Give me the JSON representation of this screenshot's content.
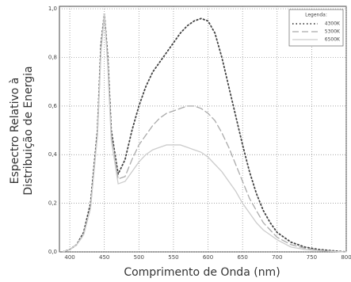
{
  "chart_data": {
    "type": "line",
    "xlabel": "Comprimento de Onda (nm)",
    "ylabel": [
      "Espectro Relativo à",
      "Distribuição de Energia"
    ],
    "legend_title": "Legenda:",
    "legend": "upper right",
    "grid": true,
    "x": [
      390,
      400,
      410,
      420,
      430,
      440,
      445,
      450,
      455,
      460,
      470,
      480,
      490,
      500,
      510,
      520,
      530,
      540,
      550,
      560,
      570,
      580,
      590,
      600,
      610,
      620,
      630,
      640,
      650,
      660,
      670,
      680,
      690,
      700,
      720,
      740,
      760,
      780,
      800
    ],
    "series": [
      {
        "name": "4300K",
        "color": "#444444",
        "style": "dotted",
        "values": [
          0,
          0.01,
          0.03,
          0.08,
          0.2,
          0.5,
          0.85,
          0.98,
          0.8,
          0.5,
          0.32,
          0.38,
          0.5,
          0.6,
          0.68,
          0.74,
          0.78,
          0.82,
          0.86,
          0.9,
          0.93,
          0.95,
          0.96,
          0.95,
          0.9,
          0.8,
          0.68,
          0.56,
          0.44,
          0.33,
          0.24,
          0.17,
          0.12,
          0.08,
          0.04,
          0.02,
          0.01,
          0.005,
          0
        ]
      },
      {
        "name": "5300K",
        "color": "#aaaaaa",
        "style": "dashed",
        "values": [
          0,
          0.01,
          0.03,
          0.07,
          0.18,
          0.48,
          0.82,
          0.98,
          0.78,
          0.48,
          0.3,
          0.31,
          0.38,
          0.44,
          0.48,
          0.52,
          0.55,
          0.57,
          0.58,
          0.59,
          0.6,
          0.6,
          0.59,
          0.57,
          0.54,
          0.49,
          0.43,
          0.36,
          0.29,
          0.22,
          0.17,
          0.12,
          0.09,
          0.06,
          0.03,
          0.015,
          0.007,
          0.003,
          0
        ]
      },
      {
        "name": "6500K",
        "color": "#cccccc",
        "style": "solid",
        "values": [
          0,
          0.01,
          0.03,
          0.07,
          0.18,
          0.48,
          0.82,
          0.98,
          0.76,
          0.46,
          0.28,
          0.29,
          0.33,
          0.37,
          0.4,
          0.42,
          0.43,
          0.44,
          0.44,
          0.44,
          0.43,
          0.42,
          0.41,
          0.39,
          0.36,
          0.33,
          0.29,
          0.25,
          0.2,
          0.16,
          0.12,
          0.09,
          0.07,
          0.05,
          0.02,
          0.01,
          0.005,
          0.002,
          0
        ]
      }
    ],
    "xlim": [
      385,
      800
    ],
    "xticks": [
      400,
      450,
      500,
      550,
      600,
      650,
      700,
      750,
      800
    ],
    "ylim": [
      0,
      1.01
    ],
    "yticks": [
      {
        "value": 0,
        "label": "0,0"
      },
      {
        "value": 0.2,
        "label": "0,2"
      },
      {
        "value": 0.4,
        "label": "0,4"
      },
      {
        "value": 0.6,
        "label": "0,6"
      },
      {
        "value": 0.8,
        "label": "0,8"
      },
      {
        "value": 1.0,
        "label": "1,0"
      }
    ]
  }
}
